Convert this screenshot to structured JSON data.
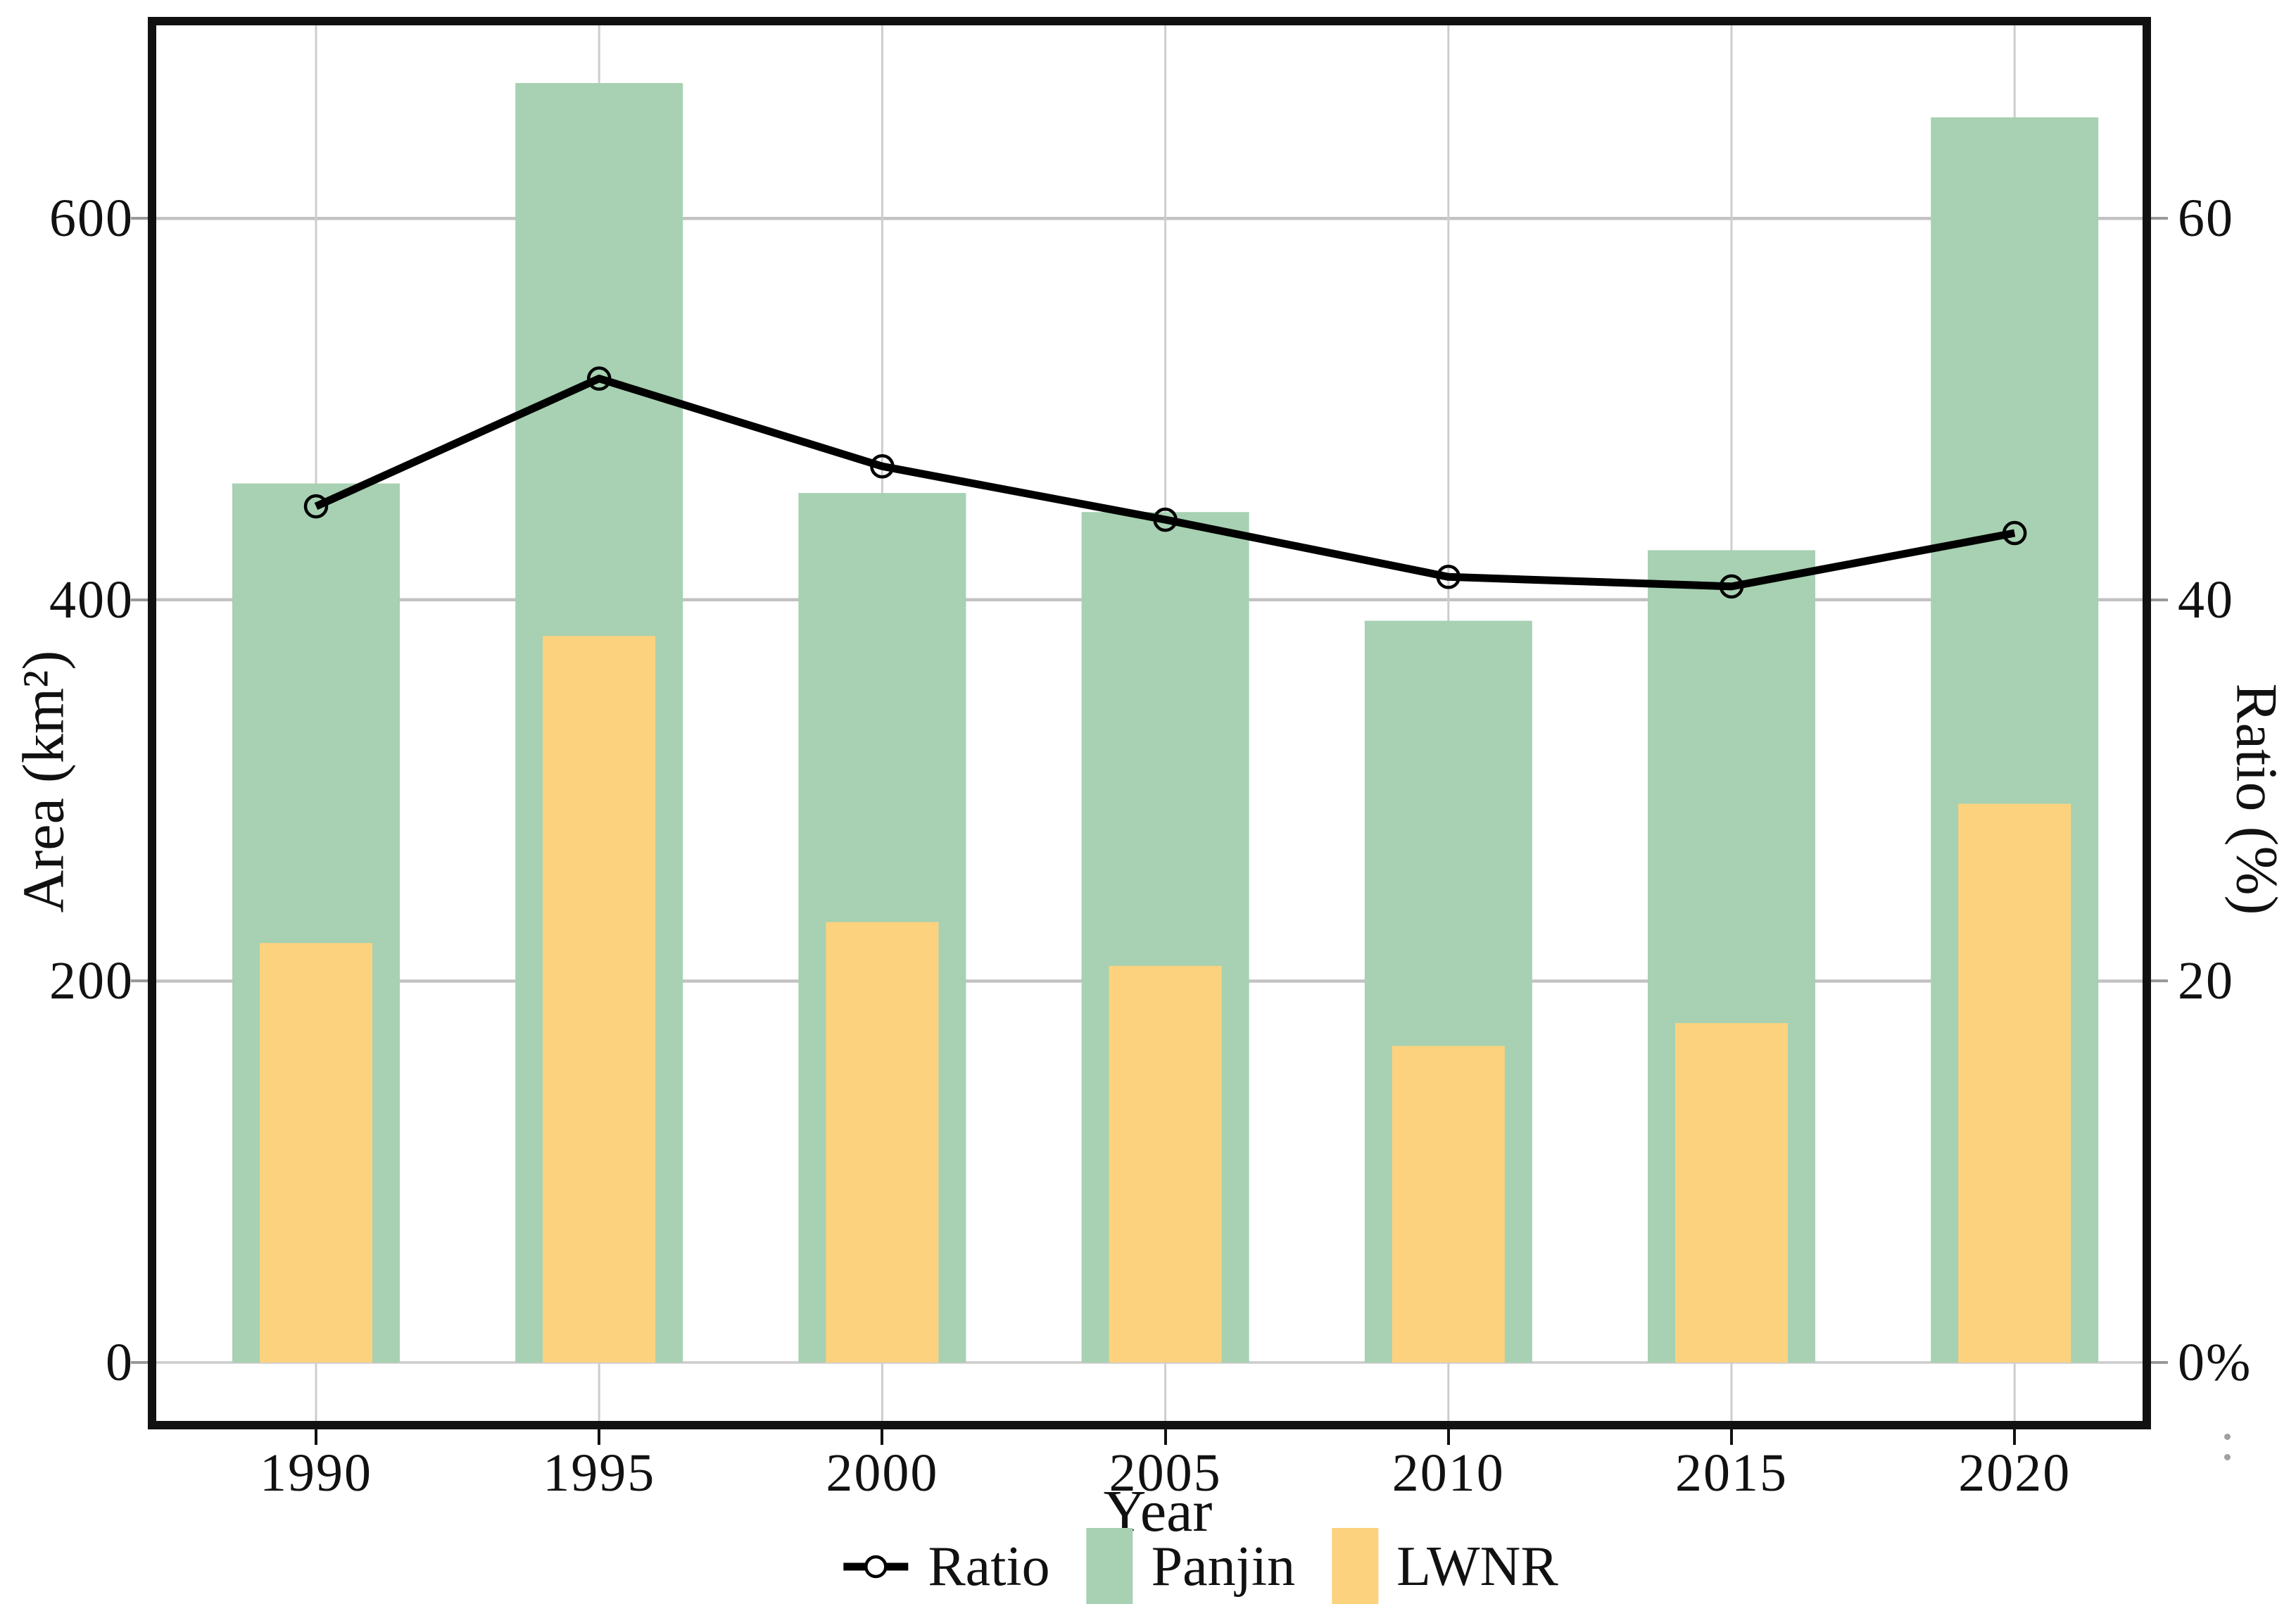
{
  "axis_titles": {
    "left": "Area (km²)",
    "right": "Ratio (%)",
    "bottom": "Year"
  },
  "colors": {
    "panjin": "#a7d1b2",
    "lwnr": "#fdd27f",
    "ratio_line": "#000000",
    "grid": "#c2c2c2",
    "grid_zero": "#cccccc",
    "border": "#111111",
    "text": "#111111"
  },
  "chart_data": {
    "type": "bar+line",
    "categories": [
      "1990",
      "1995",
      "2000",
      "2005",
      "2010",
      "2015",
      "2020"
    ],
    "series": [
      {
        "name": "Panjin",
        "color": "#a7d1b2",
        "axis": "left",
        "values": [
          461,
          671,
          456,
          446,
          389,
          426,
          653
        ]
      },
      {
        "name": "LWNR",
        "color": "#fdd27f",
        "axis": "left",
        "values": [
          220,
          381,
          231,
          208,
          166,
          178,
          293
        ]
      }
    ],
    "line_series": {
      "name": "Ratio",
      "color": "#000000",
      "axis": "right",
      "marker": "open-circle",
      "values": [
        44.9,
        51.6,
        47.0,
        44.2,
        41.2,
        40.7,
        43.5
      ]
    },
    "left_axis": {
      "label": "Area (km²)",
      "tick_values": [
        0,
        200,
        400,
        600
      ],
      "tick_labels": [
        "0",
        "200",
        "400",
        "600"
      ],
      "range": [
        0,
        702
      ]
    },
    "right_axis": {
      "label": "Ratio (%)",
      "tick_values": [
        0,
        20,
        40,
        60
      ],
      "tick_labels": [
        "0%",
        "20",
        "40",
        "60"
      ],
      "range": [
        0,
        70.2
      ]
    },
    "x_axis": {
      "label": "Year"
    },
    "grid": true,
    "legend_position": "bottom"
  }
}
